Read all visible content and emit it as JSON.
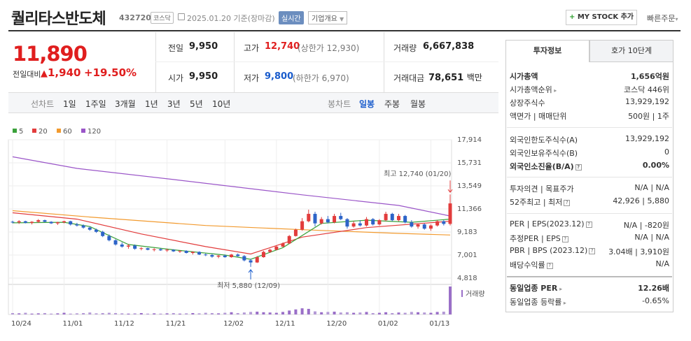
{
  "header": {
    "name": "퀄리타스반도체",
    "code": "432720",
    "market": "코스닥",
    "date_info": "2025.01.20 기준(장마감)",
    "realtime": "실시간",
    "company_info": "기업개요",
    "mystock": "MY STOCK 추가",
    "quick_order": "빠른주문"
  },
  "price": {
    "current": "11,890",
    "change_label": "전일대비",
    "change": "1,940",
    "change_pct": "+19.50%"
  },
  "quote": {
    "prev_label": "전일",
    "prev": "9,950",
    "high_label": "고가",
    "high": "12,740",
    "upper_limit": "(상한가 12,930)",
    "volume_label": "거래량",
    "volume": "6,667,838",
    "open_label": "시가",
    "open": "9,950",
    "low_label": "저가",
    "low": "9,800",
    "lower_limit": "(하한가 6,970)",
    "amount_label": "거래대금",
    "amount": "78,651",
    "amount_unit": "백만"
  },
  "periods": {
    "line_label": "선차트",
    "line_items": [
      "1일",
      "1주일",
      "3개월",
      "1년",
      "3년",
      "5년",
      "10년"
    ],
    "candle_label": "봉차트",
    "candle_items": [
      "일봉",
      "주봉",
      "월봉"
    ],
    "candle_selected": "일봉"
  },
  "chart_data": {
    "type": "candlestick",
    "legend": [
      {
        "name": "5",
        "color": "#3aa13a"
      },
      {
        "name": "20",
        "color": "#e23c3c"
      },
      {
        "name": "60",
        "color": "#f29a2e"
      },
      {
        "name": "120",
        "color": "#9a55c8"
      }
    ],
    "y_ticks": [
      "17,914",
      "15,731",
      "13,549",
      "11,366",
      "9,183",
      "7,001",
      "4,818"
    ],
    "x_ticks": [
      "10/24",
      "11/01",
      "11/12",
      "11/21",
      "12/02",
      "12/11",
      "12/20",
      "01/02",
      "01/13"
    ],
    "high_annotation": "최고 12,740 (01/20)",
    "low_annotation": "최저 5,880 (12/09)",
    "volume_label": "거래량",
    "ylim": [
      4818,
      17914
    ],
    "candles": [
      [
        10150,
        10250,
        10000,
        10100
      ],
      [
        10100,
        10300,
        9950,
        10200
      ],
      [
        10200,
        10250,
        10000,
        10050
      ],
      [
        10050,
        10200,
        9900,
        10150
      ],
      [
        10150,
        10400,
        10050,
        10300
      ],
      [
        10300,
        10350,
        10100,
        10150
      ],
      [
        10150,
        10200,
        9950,
        10000
      ],
      [
        10000,
        10150,
        9850,
        10100
      ],
      [
        10100,
        10250,
        10000,
        10200
      ],
      [
        10200,
        10250,
        9800,
        9900
      ],
      [
        9900,
        10050,
        9700,
        9800
      ],
      [
        9800,
        9900,
        9500,
        9600
      ],
      [
        9600,
        9700,
        9300,
        9400
      ],
      [
        9400,
        9500,
        9100,
        9200
      ],
      [
        9200,
        9300,
        8700,
        8800
      ],
      [
        8800,
        8950,
        8300,
        8400
      ],
      [
        8400,
        8500,
        7900,
        8000
      ],
      [
        8000,
        8200,
        7700,
        7800
      ],
      [
        7800,
        8050,
        7600,
        7900
      ],
      [
        7900,
        8000,
        7500,
        7600
      ],
      [
        7600,
        7750,
        7450,
        7650
      ],
      [
        7650,
        7700,
        7450,
        7500
      ],
      [
        7500,
        7650,
        7350,
        7550
      ],
      [
        7550,
        7650,
        7400,
        7450
      ],
      [
        7450,
        7600,
        7300,
        7500
      ],
      [
        7500,
        7550,
        7300,
        7350
      ],
      [
        7350,
        7450,
        7200,
        7400
      ],
      [
        7400,
        7450,
        7150,
        7200
      ],
      [
        7200,
        7350,
        7050,
        7300
      ],
      [
        7300,
        7350,
        7000,
        7050
      ],
      [
        7050,
        7150,
        6900,
        7000
      ],
      [
        7000,
        7100,
        6750,
        6850
      ],
      [
        6850,
        7000,
        6700,
        6950
      ],
      [
        6950,
        7050,
        6750,
        6800
      ],
      [
        6800,
        7100,
        6750,
        7050
      ],
      [
        7050,
        7150,
        6850,
        6900
      ],
      [
        6900,
        7000,
        6400,
        6500
      ],
      [
        6500,
        6650,
        5880,
        6300
      ],
      [
        6300,
        6900,
        6250,
        6800
      ],
      [
        6800,
        7400,
        6750,
        7300
      ],
      [
        7300,
        7600,
        7200,
        7500
      ],
      [
        7500,
        7900,
        7450,
        7800
      ],
      [
        7800,
        8200,
        7750,
        8100
      ],
      [
        8100,
        8900,
        8050,
        8800
      ],
      [
        8800,
        9500,
        8750,
        9400
      ],
      [
        9400,
        10500,
        9300,
        10200
      ],
      [
        10200,
        11300,
        10100,
        10900
      ],
      [
        10900,
        11100,
        9700,
        10000
      ],
      [
        10000,
        10600,
        9900,
        10400
      ],
      [
        10400,
        10700,
        10000,
        10100
      ],
      [
        10100,
        10900,
        10000,
        10700
      ],
      [
        10700,
        11000,
        10300,
        10400
      ],
      [
        10400,
        10500,
        9500,
        9700
      ],
      [
        9700,
        10200,
        9600,
        10000
      ],
      [
        10000,
        10300,
        9700,
        9800
      ],
      [
        9800,
        10600,
        9700,
        10400
      ],
      [
        10400,
        10500,
        9800,
        9900
      ],
      [
        9900,
        10400,
        9800,
        10300
      ],
      [
        10300,
        11100,
        10200,
        10900
      ],
      [
        10900,
        11000,
        10200,
        10300
      ],
      [
        10300,
        10900,
        10200,
        10700
      ],
      [
        10700,
        10800,
        10000,
        10100
      ],
      [
        10100,
        10300,
        9600,
        9700
      ],
      [
        9700,
        10000,
        9500,
        9900
      ],
      [
        9900,
        10000,
        9400,
        9500
      ],
      [
        9500,
        9900,
        9300,
        9800
      ],
      [
        9800,
        10300,
        9700,
        10200
      ],
      [
        10200,
        10300,
        9800,
        9950
      ],
      [
        9950,
        12740,
        9800,
        11890
      ]
    ],
    "ma120": [
      [
        0,
        16300
      ],
      [
        10,
        15200
      ],
      [
        25,
        14150
      ],
      [
        45,
        12700
      ],
      [
        60,
        11700
      ],
      [
        68,
        10700
      ]
    ],
    "ma60": [
      [
        0,
        11200
      ],
      [
        12,
        10600
      ],
      [
        30,
        9800
      ],
      [
        45,
        9400
      ],
      [
        60,
        9050
      ],
      [
        68,
        8900
      ]
    ],
    "ma20": [
      [
        0,
        11000
      ],
      [
        10,
        10400
      ],
      [
        20,
        9000
      ],
      [
        30,
        7800
      ],
      [
        37,
        7100
      ],
      [
        45,
        8700
      ],
      [
        55,
        9600
      ],
      [
        68,
        10200
      ]
    ],
    "ma5": [
      [
        0,
        10050
      ],
      [
        8,
        10100
      ],
      [
        12,
        9700
      ],
      [
        18,
        8000
      ],
      [
        25,
        7500
      ],
      [
        33,
        7000
      ],
      [
        37,
        6600
      ],
      [
        42,
        7700
      ],
      [
        48,
        10000
      ],
      [
        55,
        10300
      ],
      [
        62,
        10100
      ],
      [
        68,
        10400
      ]
    ],
    "volume": [
      5,
      4,
      6,
      3,
      4,
      5,
      3,
      4,
      6,
      3,
      4,
      5,
      7,
      4,
      5,
      6,
      5,
      4,
      3,
      4,
      5,
      3,
      4,
      3,
      4,
      5,
      3,
      4,
      5,
      4,
      6,
      5,
      4,
      6,
      8,
      5,
      7,
      9,
      10,
      8,
      7,
      6,
      9,
      14,
      18,
      22,
      20,
      11,
      8,
      9,
      10,
      7,
      8,
      6,
      7,
      9,
      5,
      6,
      8,
      5,
      7,
      6,
      9,
      8,
      7,
      6,
      9,
      10,
      100
    ]
  },
  "info": {
    "tab_invest": "투자정보",
    "tab_quote": "호가 10단계",
    "market_cap_label": "시가총액",
    "market_cap": "1,656억원",
    "rank_label": "시가총액순위",
    "rank": "코스닥 446위",
    "shares_label": "상장주식수",
    "shares": "13,929,192",
    "par_label": "액면가 | 매매단위",
    "par": "500원 | 1주",
    "foreign_limit_label": "외국인한도주식수(A)",
    "foreign_limit": "13,929,192",
    "foreign_held_label": "외국인보유주식수(B)",
    "foreign_held": "0",
    "foreign_ratio_label": "외국인소진율(B/A)",
    "foreign_ratio": "0.00%",
    "opinion_label": "투자의견 | 목표주가",
    "opinion": "N/A | N/A",
    "week52_label": "52주최고 | 최저",
    "week52": "42,926 | 5,880",
    "per_label": "PER | EPS(2023.12)",
    "per": "N/A | -820원",
    "est_per_label": "추정PER | EPS",
    "est_per": "N/A | N/A",
    "pbr_label": "PBR | BPS (2023.12)",
    "pbr": "3.04배 | 3,910원",
    "div_label": "배당수익률",
    "div": "N/A",
    "ind_per_label": "동일업종 PER",
    "ind_per": "12.26배",
    "ind_rate_label": "동일업종 등락률",
    "ind_rate": "-0.65%"
  }
}
